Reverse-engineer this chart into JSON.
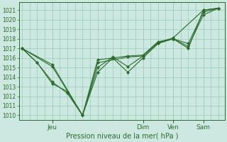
{
  "bg_color": "#cce8e0",
  "grid_color": "#99ccbb",
  "line_color": "#2d6b2d",
  "xlabel": "Pression niveau de la mer( hPa )",
  "ylim": [
    1009.5,
    1021.8
  ],
  "yticks": [
    1010,
    1011,
    1012,
    1013,
    1014,
    1015,
    1016,
    1017,
    1018,
    1019,
    1020,
    1021
  ],
  "day_labels": [
    "Jeu",
    "Dim",
    "Ven",
    "Sam"
  ],
  "day_offsets": [
    1,
    4,
    5,
    6
  ],
  "series": [
    {
      "t": [
        0.0,
        0.5,
        1.0,
        1.5,
        2.0,
        2.5,
        3.0,
        3.5,
        4.0,
        4.5,
        5.0,
        5.5,
        6.0,
        6.5
      ],
      "y": [
        1017.0,
        1015.5,
        1013.5,
        1012.3,
        1010.0,
        1015.0,
        1016.1,
        1015.1,
        1016.2,
        1017.6,
        1018.0,
        1017.0,
        1021.0,
        1021.2
      ]
    },
    {
      "t": [
        0.0,
        0.5,
        1.0,
        1.5,
        2.0,
        2.5,
        3.0,
        3.5,
        4.0,
        4.5,
        5.0,
        5.5,
        6.0,
        6.5
      ],
      "y": [
        1017.0,
        1015.5,
        1013.3,
        1012.5,
        1010.0,
        1014.5,
        1016.0,
        1014.5,
        1016.0,
        1017.5,
        1018.0,
        1017.2,
        1020.5,
        1021.2
      ]
    },
    {
      "t": [
        0.0,
        1.0,
        2.0,
        2.5,
        3.5,
        4.0,
        4.5,
        5.0,
        6.0,
        6.5
      ],
      "y": [
        1017.0,
        1015.3,
        1010.0,
        1015.5,
        1016.1,
        1016.2,
        1017.6,
        1018.1,
        1021.0,
        1021.2
      ]
    },
    {
      "t": [
        0.0,
        1.0,
        2.0,
        2.5,
        3.5,
        4.0,
        4.5,
        5.0,
        5.5,
        6.0,
        6.5
      ],
      "y": [
        1017.0,
        1015.1,
        1010.0,
        1015.8,
        1016.2,
        1016.3,
        1017.7,
        1018.0,
        1017.5,
        1020.8,
        1021.2
      ]
    }
  ]
}
